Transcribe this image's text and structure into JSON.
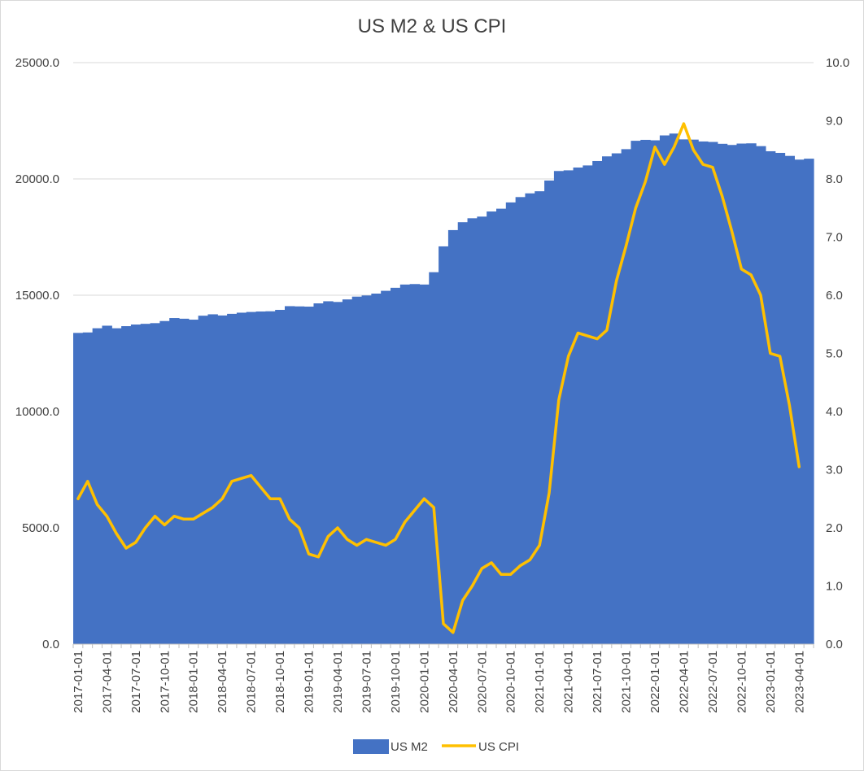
{
  "chart_data": {
    "type": "area",
    "title": "US M2 & US CPI",
    "x_tick_labels": [
      "2017-01-01",
      "2017-04-01",
      "2017-07-01",
      "2017-10-01",
      "2018-01-01",
      "2018-04-01",
      "2018-07-01",
      "2018-10-01",
      "2019-01-01",
      "2019-04-01",
      "2019-07-01",
      "2019-10-01",
      "2020-01-01",
      "2020-04-01",
      "2020-07-01",
      "2020-10-01",
      "2021-01-01",
      "2021-04-01",
      "2021-07-01",
      "2021-10-01",
      "2022-01-01",
      "2022-04-01",
      "2022-07-01",
      "2022-10-01",
      "2023-01-01",
      "2023-04-01"
    ],
    "y_left": {
      "ticks": [
        "0.0",
        "5000.0",
        "10000.0",
        "15000.0",
        "20000.0",
        "25000.0"
      ],
      "min": 0,
      "max": 25000
    },
    "y_right": {
      "ticks": [
        "0.0",
        "1.0",
        "2.0",
        "3.0",
        "4.0",
        "5.0",
        "6.0",
        "7.0",
        "8.0",
        "9.0",
        "10.0"
      ],
      "min": 0,
      "max": 10
    },
    "grid": true,
    "legend_position": "bottom",
    "series": [
      {
        "name": "US M2",
        "kind": "column-area",
        "axis": "left",
        "color": "#4472C4",
        "values": [
          13380,
          13400,
          13580,
          13690,
          13580,
          13670,
          13740,
          13770,
          13800,
          13890,
          14020,
          13990,
          13950,
          14120,
          14180,
          14130,
          14200,
          14250,
          14280,
          14300,
          14310,
          14370,
          14530,
          14520,
          14510,
          14650,
          14740,
          14710,
          14820,
          14940,
          14990,
          15070,
          15190,
          15320,
          15460,
          15480,
          15460,
          15990,
          17100,
          17800,
          18140,
          18310,
          18380,
          18600,
          18720,
          18990,
          19220,
          19380,
          19470,
          19930,
          20340,
          20370,
          20490,
          20580,
          20770,
          20970,
          21100,
          21280,
          21640,
          21680,
          21660,
          21870,
          21950,
          21700,
          21690,
          21610,
          21590,
          21510,
          21460,
          21520,
          21530,
          21410,
          21190,
          21120,
          20990,
          20830,
          20870
        ]
      },
      {
        "name": "US CPI",
        "kind": "line",
        "axis": "right",
        "color": "#FFC000",
        "values": [
          2.5,
          2.8,
          2.4,
          2.2,
          1.9,
          1.65,
          1.75,
          2.0,
          2.2,
          2.05,
          2.2,
          2.15,
          2.15,
          2.25,
          2.35,
          2.5,
          2.8,
          2.85,
          2.9,
          2.7,
          2.5,
          2.5,
          2.15,
          2.0,
          1.55,
          1.5,
          1.85,
          2.0,
          1.8,
          1.7,
          1.8,
          1.75,
          1.7,
          1.8,
          2.1,
          2.3,
          2.5,
          2.35,
          0.35,
          0.2,
          0.75,
          1.0,
          1.3,
          1.4,
          1.2,
          1.2,
          1.35,
          1.45,
          1.7,
          2.6,
          4.2,
          4.95,
          5.35,
          5.3,
          5.25,
          5.4,
          6.25,
          6.85,
          7.5,
          7.95,
          8.55,
          8.25,
          8.55,
          8.95,
          8.5,
          8.25,
          8.2,
          7.7,
          7.1,
          6.45,
          6.35,
          6.0,
          5.0,
          4.95,
          4.1,
          3.05
        ]
      }
    ]
  }
}
